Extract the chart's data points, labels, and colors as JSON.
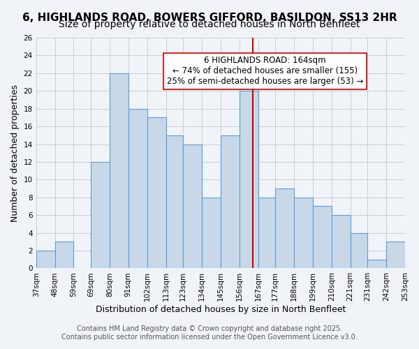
{
  "title1": "6, HIGHLANDS ROAD, BOWERS GIFFORD, BASILDON, SS13 2HR",
  "title2": "Size of property relative to detached houses in North Benfleet",
  "xlabel": "Distribution of detached houses by size in North Benfleet",
  "ylabel": "Number of detached properties",
  "bar_values": [
    2,
    3,
    0,
    12,
    22,
    18,
    17,
    15,
    14,
    8,
    15,
    20,
    8,
    9,
    8,
    7,
    6,
    4,
    1,
    3
  ],
  "bin_edges": [
    37,
    48,
    59,
    69,
    80,
    91,
    102,
    113,
    123,
    134,
    145,
    156,
    167,
    177,
    188,
    199,
    210,
    221,
    231,
    242,
    253
  ],
  "tick_labels": [
    "37sqm",
    "48sqm",
    "59sqm",
    "69sqm",
    "80sqm",
    "91sqm",
    "102sqm",
    "113sqm",
    "123sqm",
    "134sqm",
    "145sqm",
    "156sqm",
    "167sqm",
    "177sqm",
    "188sqm",
    "199sqm",
    "210sqm",
    "221sqm",
    "231sqm",
    "242sqm",
    "253sqm"
  ],
  "bar_color": "#c8d8e8",
  "bar_edge_color": "#5b9bd5",
  "red_line_x": 164,
  "red_line_color": "#cc0000",
  "ylim": [
    0,
    26
  ],
  "yticks": [
    0,
    2,
    4,
    6,
    8,
    10,
    12,
    14,
    16,
    18,
    20,
    22,
    24,
    26
  ],
  "annotation_title": "6 HIGHLANDS ROAD: 164sqm",
  "annotation_line1": "← 74% of detached houses are smaller (155)",
  "annotation_line2": "25% of semi-detached houses are larger (53) →",
  "annotation_box_color": "#ffffff",
  "annotation_box_edge": "#cc0000",
  "bg_color": "#f0f4f8",
  "grid_color": "#c0c8d0",
  "footer1": "Contains HM Land Registry data © Crown copyright and database right 2025.",
  "footer2": "Contains public sector information licensed under the Open Government Licence v3.0.",
  "title1_fontsize": 11,
  "title2_fontsize": 10,
  "xlabel_fontsize": 9,
  "ylabel_fontsize": 9,
  "tick_fontsize": 7.5,
  "annotation_fontsize": 8.5,
  "footer_fontsize": 7
}
